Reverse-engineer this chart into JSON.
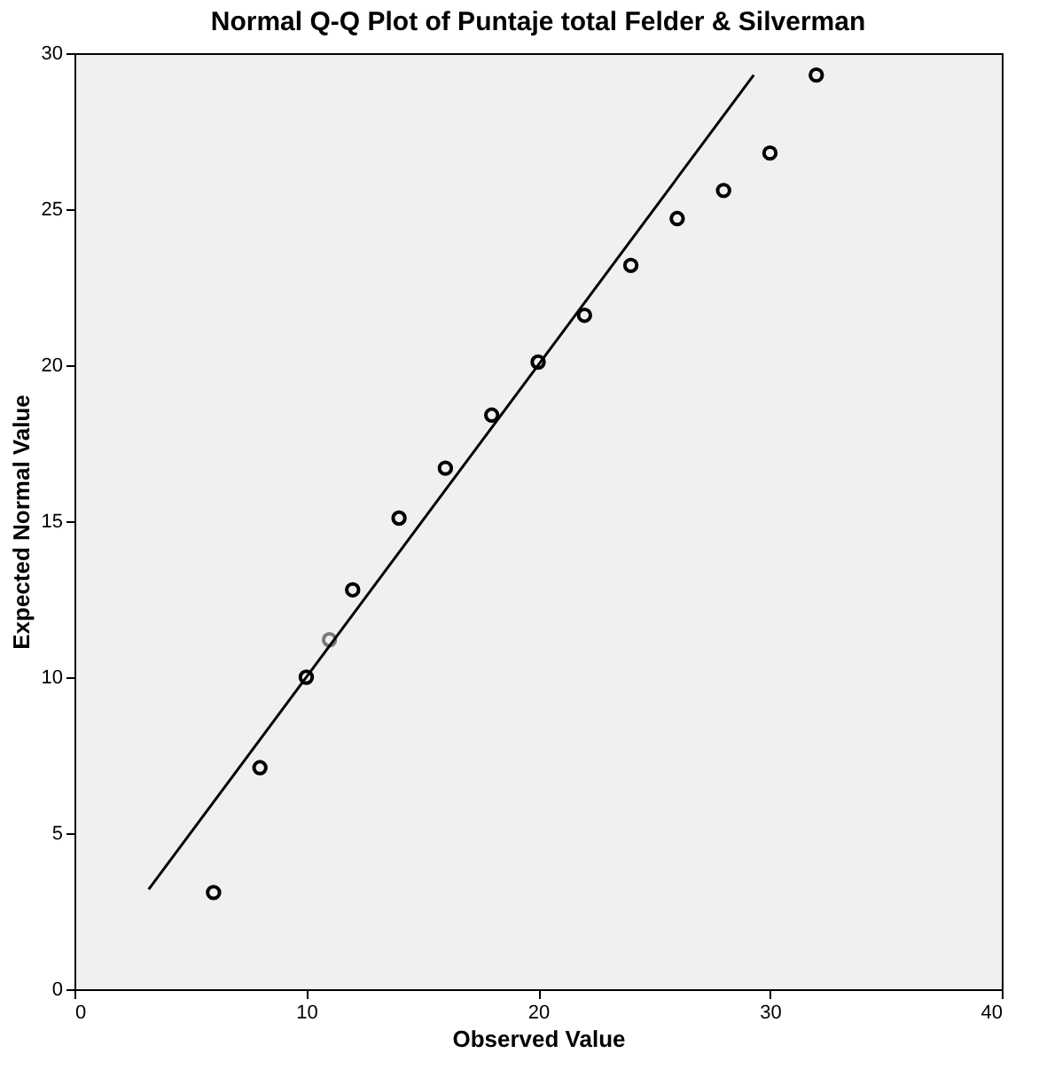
{
  "chart_data": {
    "type": "scatter",
    "title": "Normal Q-Q Plot of Puntaje total Felder & Silverman",
    "xlabel": "Observed Value",
    "ylabel": "Expected Normal Value",
    "xlim": [
      0,
      40
    ],
    "xticks": [
      0,
      10,
      20,
      30,
      40
    ],
    "ylim": [
      0,
      30
    ],
    "yticks": [
      0,
      5,
      10,
      15,
      20,
      25,
      30
    ],
    "grid": false,
    "marker": "circle",
    "series": [
      {
        "color": "#000000",
        "x": [
          6,
          8,
          10,
          12,
          14,
          16,
          18,
          20,
          22,
          24,
          26,
          28,
          30,
          32
        ],
        "values": [
          3.1,
          7.1,
          10.0,
          12.8,
          15.1,
          16.7,
          18.4,
          20.1,
          21.6,
          23.2,
          24.7,
          25.6,
          26.8,
          29.3
        ]
      },
      {
        "color": "#7a7a7a",
        "x": [
          11
        ],
        "values": [
          11.2
        ]
      },
      {
        "type": "line",
        "color": "#000000",
        "line_style": "solid",
        "marker": "none",
        "x": [
          3.2,
          29.3
        ],
        "values": [
          3.2,
          29.3
        ]
      }
    ]
  }
}
